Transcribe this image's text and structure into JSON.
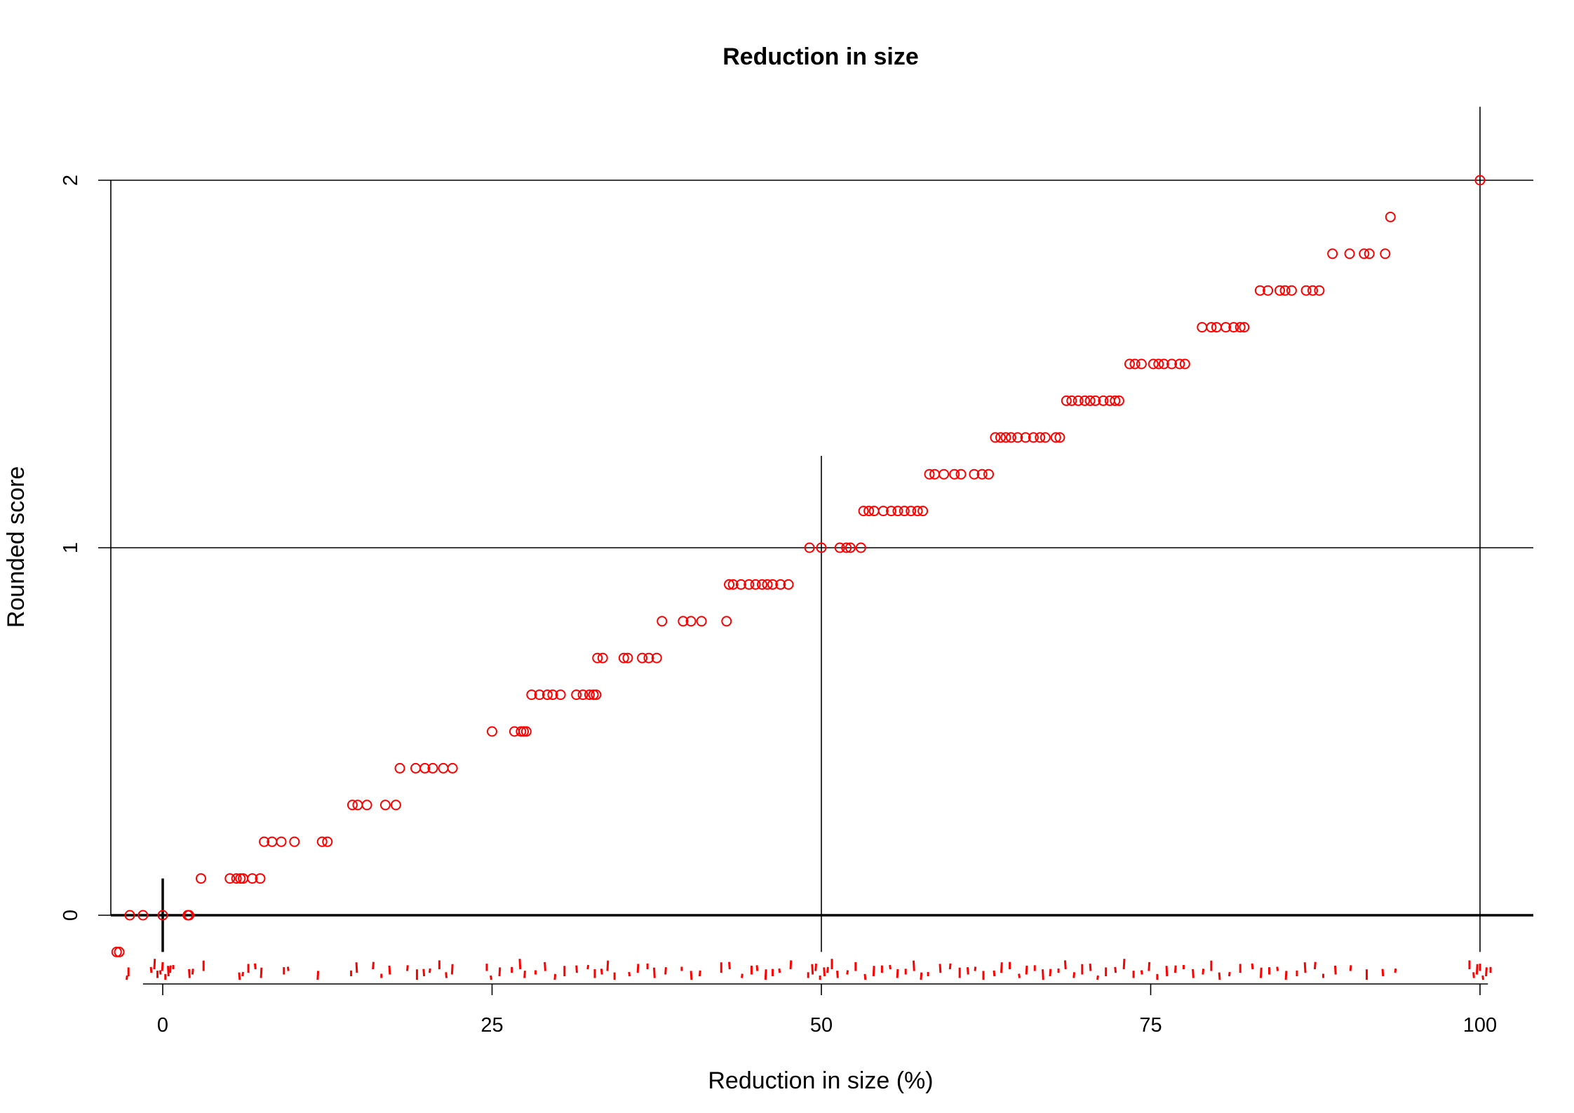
{
  "chart_data": {
    "type": "scatter",
    "title": "Reduction in size",
    "xlabel": "Reduction in size (%)",
    "ylabel": "Rounded score",
    "xlim": [
      -4,
      100
    ],
    "ylim": [
      -0.1,
      2
    ],
    "x_ticks": [
      "0",
      "25",
      "50",
      "75",
      "100"
    ],
    "x_tick_values": [
      0,
      25,
      50,
      75,
      100
    ],
    "y_ticks": [
      "0",
      "1",
      "2"
    ],
    "y_tick_values": [
      0,
      1,
      2
    ],
    "grid": "horizontal lines at y = 0, 1, 2",
    "reference_lines": [
      {
        "orientation": "vertical",
        "x": 0,
        "y_range": [
          -0.1,
          0.1
        ]
      },
      {
        "orientation": "vertical",
        "x": 50,
        "y_range": [
          -0.1,
          1.25
        ]
      },
      {
        "orientation": "vertical",
        "x": 100,
        "y_range": [
          -0.1,
          2.2
        ]
      }
    ],
    "rug": "red tick marks along the x-axis showing observed values",
    "marker_color": "#ff0000",
    "line_color": "#000000",
    "series": [
      {
        "points": [
          [
            -3.5,
            -0.1
          ],
          [
            -3.3,
            -0.1
          ],
          [
            -2.5,
            0
          ],
          [
            -1.5,
            0
          ],
          [
            0,
            0
          ],
          [
            1.9,
            0
          ],
          [
            2.0,
            0
          ],
          [
            2.9,
            0.1
          ],
          [
            5.1,
            0.1
          ],
          [
            5.6,
            0.1
          ],
          [
            5.9,
            0.1
          ],
          [
            6.1,
            0.1
          ],
          [
            6.8,
            0.1
          ],
          [
            7.4,
            0.1
          ],
          [
            7.7,
            0.2
          ],
          [
            8.3,
            0.2
          ],
          [
            9.0,
            0.2
          ],
          [
            10.0,
            0.2
          ],
          [
            12.1,
            0.2
          ],
          [
            12.5,
            0.2
          ],
          [
            14.4,
            0.3
          ],
          [
            14.8,
            0.3
          ],
          [
            15.5,
            0.3
          ],
          [
            16.9,
            0.3
          ],
          [
            17.7,
            0.3
          ],
          [
            18.0,
            0.4
          ],
          [
            19.2,
            0.4
          ],
          [
            19.9,
            0.4
          ],
          [
            20.5,
            0.4
          ],
          [
            21.3,
            0.4
          ],
          [
            22.0,
            0.4
          ],
          [
            25.0,
            0.5
          ],
          [
            26.7,
            0.5
          ],
          [
            27.2,
            0.5
          ],
          [
            27.4,
            0.5
          ],
          [
            27.6,
            0.5
          ],
          [
            28.0,
            0.6
          ],
          [
            28.6,
            0.6
          ],
          [
            29.2,
            0.6
          ],
          [
            29.6,
            0.6
          ],
          [
            30.2,
            0.6
          ],
          [
            31.4,
            0.6
          ],
          [
            31.9,
            0.6
          ],
          [
            32.4,
            0.6
          ],
          [
            32.7,
            0.6
          ],
          [
            32.9,
            0.6
          ],
          [
            33.0,
            0.7
          ],
          [
            33.4,
            0.7
          ],
          [
            35.0,
            0.7
          ],
          [
            35.3,
            0.7
          ],
          [
            36.4,
            0.7
          ],
          [
            36.9,
            0.7
          ],
          [
            37.5,
            0.7
          ],
          [
            37.9,
            0.8
          ],
          [
            39.5,
            0.8
          ],
          [
            40.1,
            0.8
          ],
          [
            40.9,
            0.8
          ],
          [
            42.8,
            0.8
          ],
          [
            43.0,
            0.9
          ],
          [
            43.3,
            0.9
          ],
          [
            43.9,
            0.9
          ],
          [
            44.5,
            0.9
          ],
          [
            45.0,
            0.9
          ],
          [
            45.5,
            0.9
          ],
          [
            45.9,
            0.9
          ],
          [
            46.3,
            0.9
          ],
          [
            46.9,
            0.9
          ],
          [
            47.5,
            0.9
          ],
          [
            49.1,
            1.0
          ],
          [
            50.0,
            1.0
          ],
          [
            51.4,
            1.0
          ],
          [
            51.9,
            1.0
          ],
          [
            52.2,
            1.0
          ],
          [
            53.0,
            1.0
          ],
          [
            53.2,
            1.1
          ],
          [
            53.6,
            1.1
          ],
          [
            54.0,
            1.1
          ],
          [
            54.7,
            1.1
          ],
          [
            55.3,
            1.1
          ],
          [
            55.8,
            1.1
          ],
          [
            56.3,
            1.1
          ],
          [
            56.8,
            1.1
          ],
          [
            57.3,
            1.1
          ],
          [
            57.7,
            1.1
          ],
          [
            58.2,
            1.2
          ],
          [
            58.6,
            1.2
          ],
          [
            59.3,
            1.2
          ],
          [
            60.1,
            1.2
          ],
          [
            60.6,
            1.2
          ],
          [
            61.6,
            1.2
          ],
          [
            62.2,
            1.2
          ],
          [
            62.7,
            1.2
          ],
          [
            63.2,
            1.3
          ],
          [
            63.6,
            1.3
          ],
          [
            64.0,
            1.3
          ],
          [
            64.4,
            1.3
          ],
          [
            64.9,
            1.3
          ],
          [
            65.5,
            1.3
          ],
          [
            66.1,
            1.3
          ],
          [
            66.6,
            1.3
          ],
          [
            67.0,
            1.3
          ],
          [
            67.8,
            1.3
          ],
          [
            68.1,
            1.3
          ],
          [
            68.6,
            1.4
          ],
          [
            69.0,
            1.4
          ],
          [
            69.5,
            1.4
          ],
          [
            70.0,
            1.4
          ],
          [
            70.4,
            1.4
          ],
          [
            70.8,
            1.4
          ],
          [
            71.4,
            1.4
          ],
          [
            71.9,
            1.4
          ],
          [
            72.3,
            1.4
          ],
          [
            72.6,
            1.4
          ],
          [
            73.4,
            1.5
          ],
          [
            73.8,
            1.5
          ],
          [
            74.3,
            1.5
          ],
          [
            75.2,
            1.5
          ],
          [
            75.6,
            1.5
          ],
          [
            76.0,
            1.5
          ],
          [
            76.6,
            1.5
          ],
          [
            77.2,
            1.5
          ],
          [
            77.6,
            1.5
          ],
          [
            78.9,
            1.6
          ],
          [
            79.6,
            1.6
          ],
          [
            80.0,
            1.6
          ],
          [
            80.7,
            1.6
          ],
          [
            81.3,
            1.6
          ],
          [
            81.8,
            1.6
          ],
          [
            82.1,
            1.6
          ],
          [
            83.3,
            1.7
          ],
          [
            83.9,
            1.7
          ],
          [
            84.8,
            1.7
          ],
          [
            85.2,
            1.7
          ],
          [
            85.7,
            1.7
          ],
          [
            86.8,
            1.7
          ],
          [
            87.3,
            1.7
          ],
          [
            87.8,
            1.7
          ],
          [
            88.8,
            1.8
          ],
          [
            90.1,
            1.8
          ],
          [
            91.2,
            1.8
          ],
          [
            91.6,
            1.8
          ],
          [
            92.8,
            1.8
          ],
          [
            93.2,
            1.9
          ],
          [
            100.0,
            2.0
          ]
        ]
      }
    ],
    "rug_x": [
      -2.7,
      -2.6,
      -0.9,
      -0.6,
      -0.4,
      -0.2,
      0.0,
      0.2,
      0.4,
      0.6,
      0.8,
      2.0,
      2.3,
      3.1,
      5.8,
      6.1,
      6.5,
      7.0,
      7.5,
      9.2,
      9.5,
      11.8,
      14.3,
      14.7,
      16.0,
      16.6,
      17.2,
      18.6,
      19.3,
      19.8,
      20.3,
      21.0,
      21.5,
      22.0,
      24.6,
      24.9,
      25.6,
      26.5,
      27.1,
      27.5,
      28.3,
      29.0,
      29.8,
      30.5,
      31.4,
      32.3,
      32.8,
      33.3,
      33.8,
      34.3,
      35.4,
      36.1,
      36.8,
      37.3,
      38.2,
      39.4,
      40.1,
      40.8,
      42.4,
      43.0,
      44.0,
      44.7,
      45.1,
      45.8,
      46.3,
      46.8,
      47.7,
      49.0,
      49.3,
      49.6,
      49.9,
      50.2,
      50.5,
      50.8,
      51.2,
      52.0,
      52.6,
      53.3,
      54.0,
      54.6,
      55.2,
      55.8,
      56.4,
      57.0,
      57.6,
      58.1,
      59.0,
      59.8,
      60.5,
      61.1,
      61.7,
      62.3,
      63.1,
      63.7,
      64.3,
      65.0,
      65.6,
      66.2,
      66.8,
      67.4,
      68.0,
      68.5,
      69.2,
      69.8,
      70.4,
      71.0,
      71.6,
      72.3,
      73.0,
      73.7,
      74.3,
      74.9,
      75.5,
      76.2,
      76.9,
      77.5,
      78.2,
      79.0,
      79.6,
      80.2,
      81.0,
      81.8,
      82.7,
      83.4,
      84.0,
      84.6,
      85.3,
      86.1,
      86.7,
      87.5,
      88.1,
      89.0,
      90.2,
      91.4,
      92.6,
      93.6,
      99.2,
      99.5,
      99.8,
      100.0,
      100.2,
      100.5,
      100.8
    ]
  }
}
